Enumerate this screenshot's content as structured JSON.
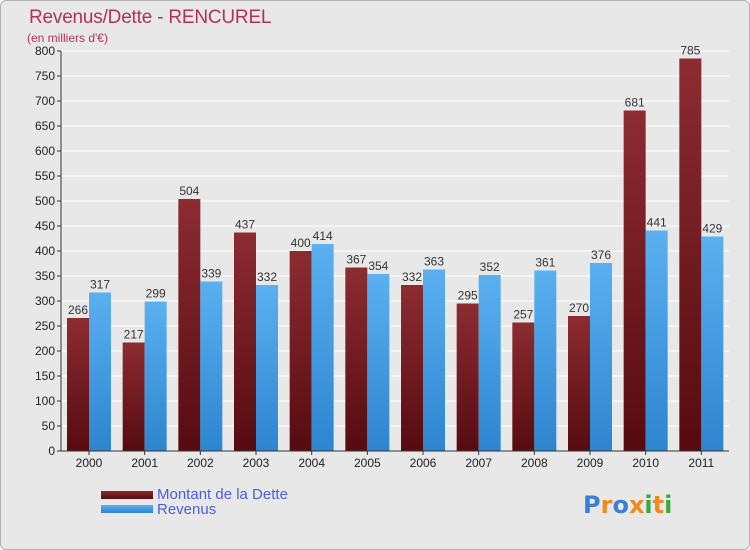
{
  "chart_data": {
    "type": "bar",
    "title": "Revenus/Dette - RENCUREL",
    "subtitle": "(en milliers d'€)",
    "xlabel": "",
    "ylabel": "",
    "ylim": [
      0,
      800
    ],
    "yticks": [
      0,
      50,
      100,
      150,
      200,
      250,
      300,
      350,
      400,
      450,
      500,
      550,
      600,
      650,
      700,
      750,
      800
    ],
    "categories": [
      "2000",
      "2001",
      "2002",
      "2003",
      "2004",
      "2005",
      "2006",
      "2007",
      "2008",
      "2009",
      "2010",
      "2011"
    ],
    "series": [
      {
        "name": "Montant de la Dette",
        "color": "#7a1a22",
        "values": [
          266,
          217,
          504,
          437,
          400,
          367,
          332,
          295,
          257,
          270,
          681,
          785
        ]
      },
      {
        "name": "Revenus",
        "color": "#4aa3e8",
        "values": [
          317,
          299,
          339,
          332,
          414,
          354,
          363,
          352,
          361,
          376,
          441,
          429
        ]
      }
    ],
    "grid": true,
    "legend": "bottom-left"
  },
  "legend": {
    "dette_label": "Montant de la Dette",
    "revenus_label": "Revenus",
    "text_color": "#4a5ee0"
  },
  "logo": {
    "text": "Proxiti",
    "letters": [
      {
        "ch": "P",
        "color": "#3a7fd5"
      },
      {
        "ch": "r",
        "color": "#f08a1c"
      },
      {
        "ch": "o",
        "color": "#3a7fd5"
      },
      {
        "ch": "x",
        "color": "#f08a1c"
      },
      {
        "ch": "i",
        "color": "#3aa83a"
      },
      {
        "ch": "t",
        "color": "#f08a1c"
      },
      {
        "ch": "i",
        "color": "#3aa83a"
      }
    ]
  }
}
